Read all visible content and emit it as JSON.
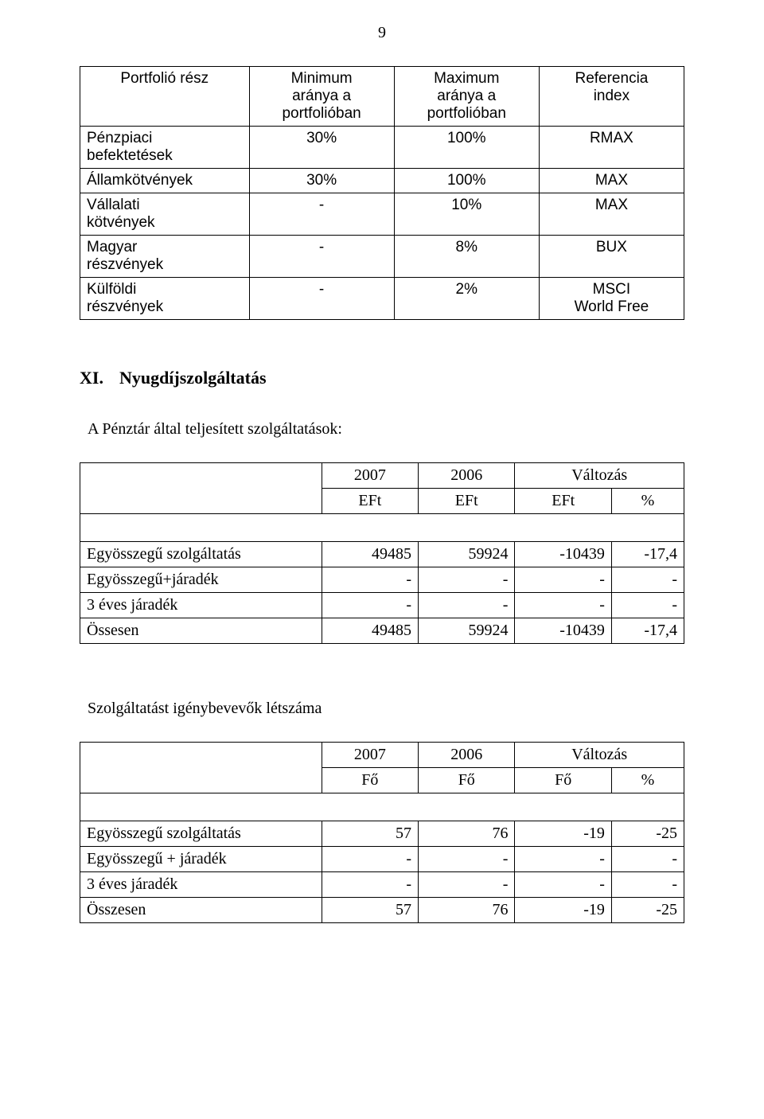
{
  "page_number": "9",
  "table1": {
    "headers": [
      "Portfolió rész",
      "Minimum\naránya a\nportfolióban",
      "Maximum\naránya a\nportfolióban",
      "Referencia\nindex"
    ],
    "rows": [
      [
        "Pénzpiaci\nbefektetések",
        "30%",
        "100%",
        "RMAX"
      ],
      [
        "Államkötvények",
        "30%",
        "100%",
        "MAX"
      ],
      [
        "Vállalati\nkötvények",
        "-",
        "10%",
        "MAX"
      ],
      [
        "Magyar\nrészvények",
        "-",
        "8%",
        "BUX"
      ],
      [
        "Külföldi\nrészvények",
        "-",
        "2%",
        "MSCI\nWorld Free"
      ]
    ]
  },
  "section": {
    "number": "XI.",
    "title": "Nyugdíjszolgáltatás"
  },
  "sub1": "A  Pénztár által  teljesített szolgáltatások:",
  "table2": {
    "year1": "2007",
    "year2": "2006",
    "unit1": "EFt",
    "unit2": "EFt",
    "change_label": "Változás",
    "change_unit": "EFt",
    "change_pct": "%",
    "rows": [
      [
        "Egyösszegű szolgáltatás",
        "49485",
        "59924",
        "-10439",
        "-17,4"
      ],
      [
        "Egyösszegű+járadék",
        "-",
        "-",
        "-",
        "-"
      ],
      [
        "3 éves  járadék",
        "-",
        "-",
        "-",
        "-"
      ],
      [
        "Össesen",
        "49485",
        "59924",
        "-10439",
        "-17,4"
      ]
    ]
  },
  "sub2": "Szolgáltatást igénybevevők létszáma",
  "table3": {
    "year1": "2007",
    "year2": "2006",
    "unit1": "Fő",
    "unit2": "Fő",
    "change_label": "Változás",
    "change_unit": "Fő",
    "change_pct": "%",
    "rows": [
      [
        "Egyösszegű szolgáltatás",
        "57",
        "76",
        "-19",
        "-25"
      ],
      [
        "Egyösszegű + járadék",
        "-",
        "-",
        "-",
        "-"
      ],
      [
        "3 éves járadék",
        "-",
        "-",
        "-",
        "-"
      ],
      [
        "Összesen",
        "57",
        "76",
        "-19",
        "-25"
      ]
    ]
  }
}
